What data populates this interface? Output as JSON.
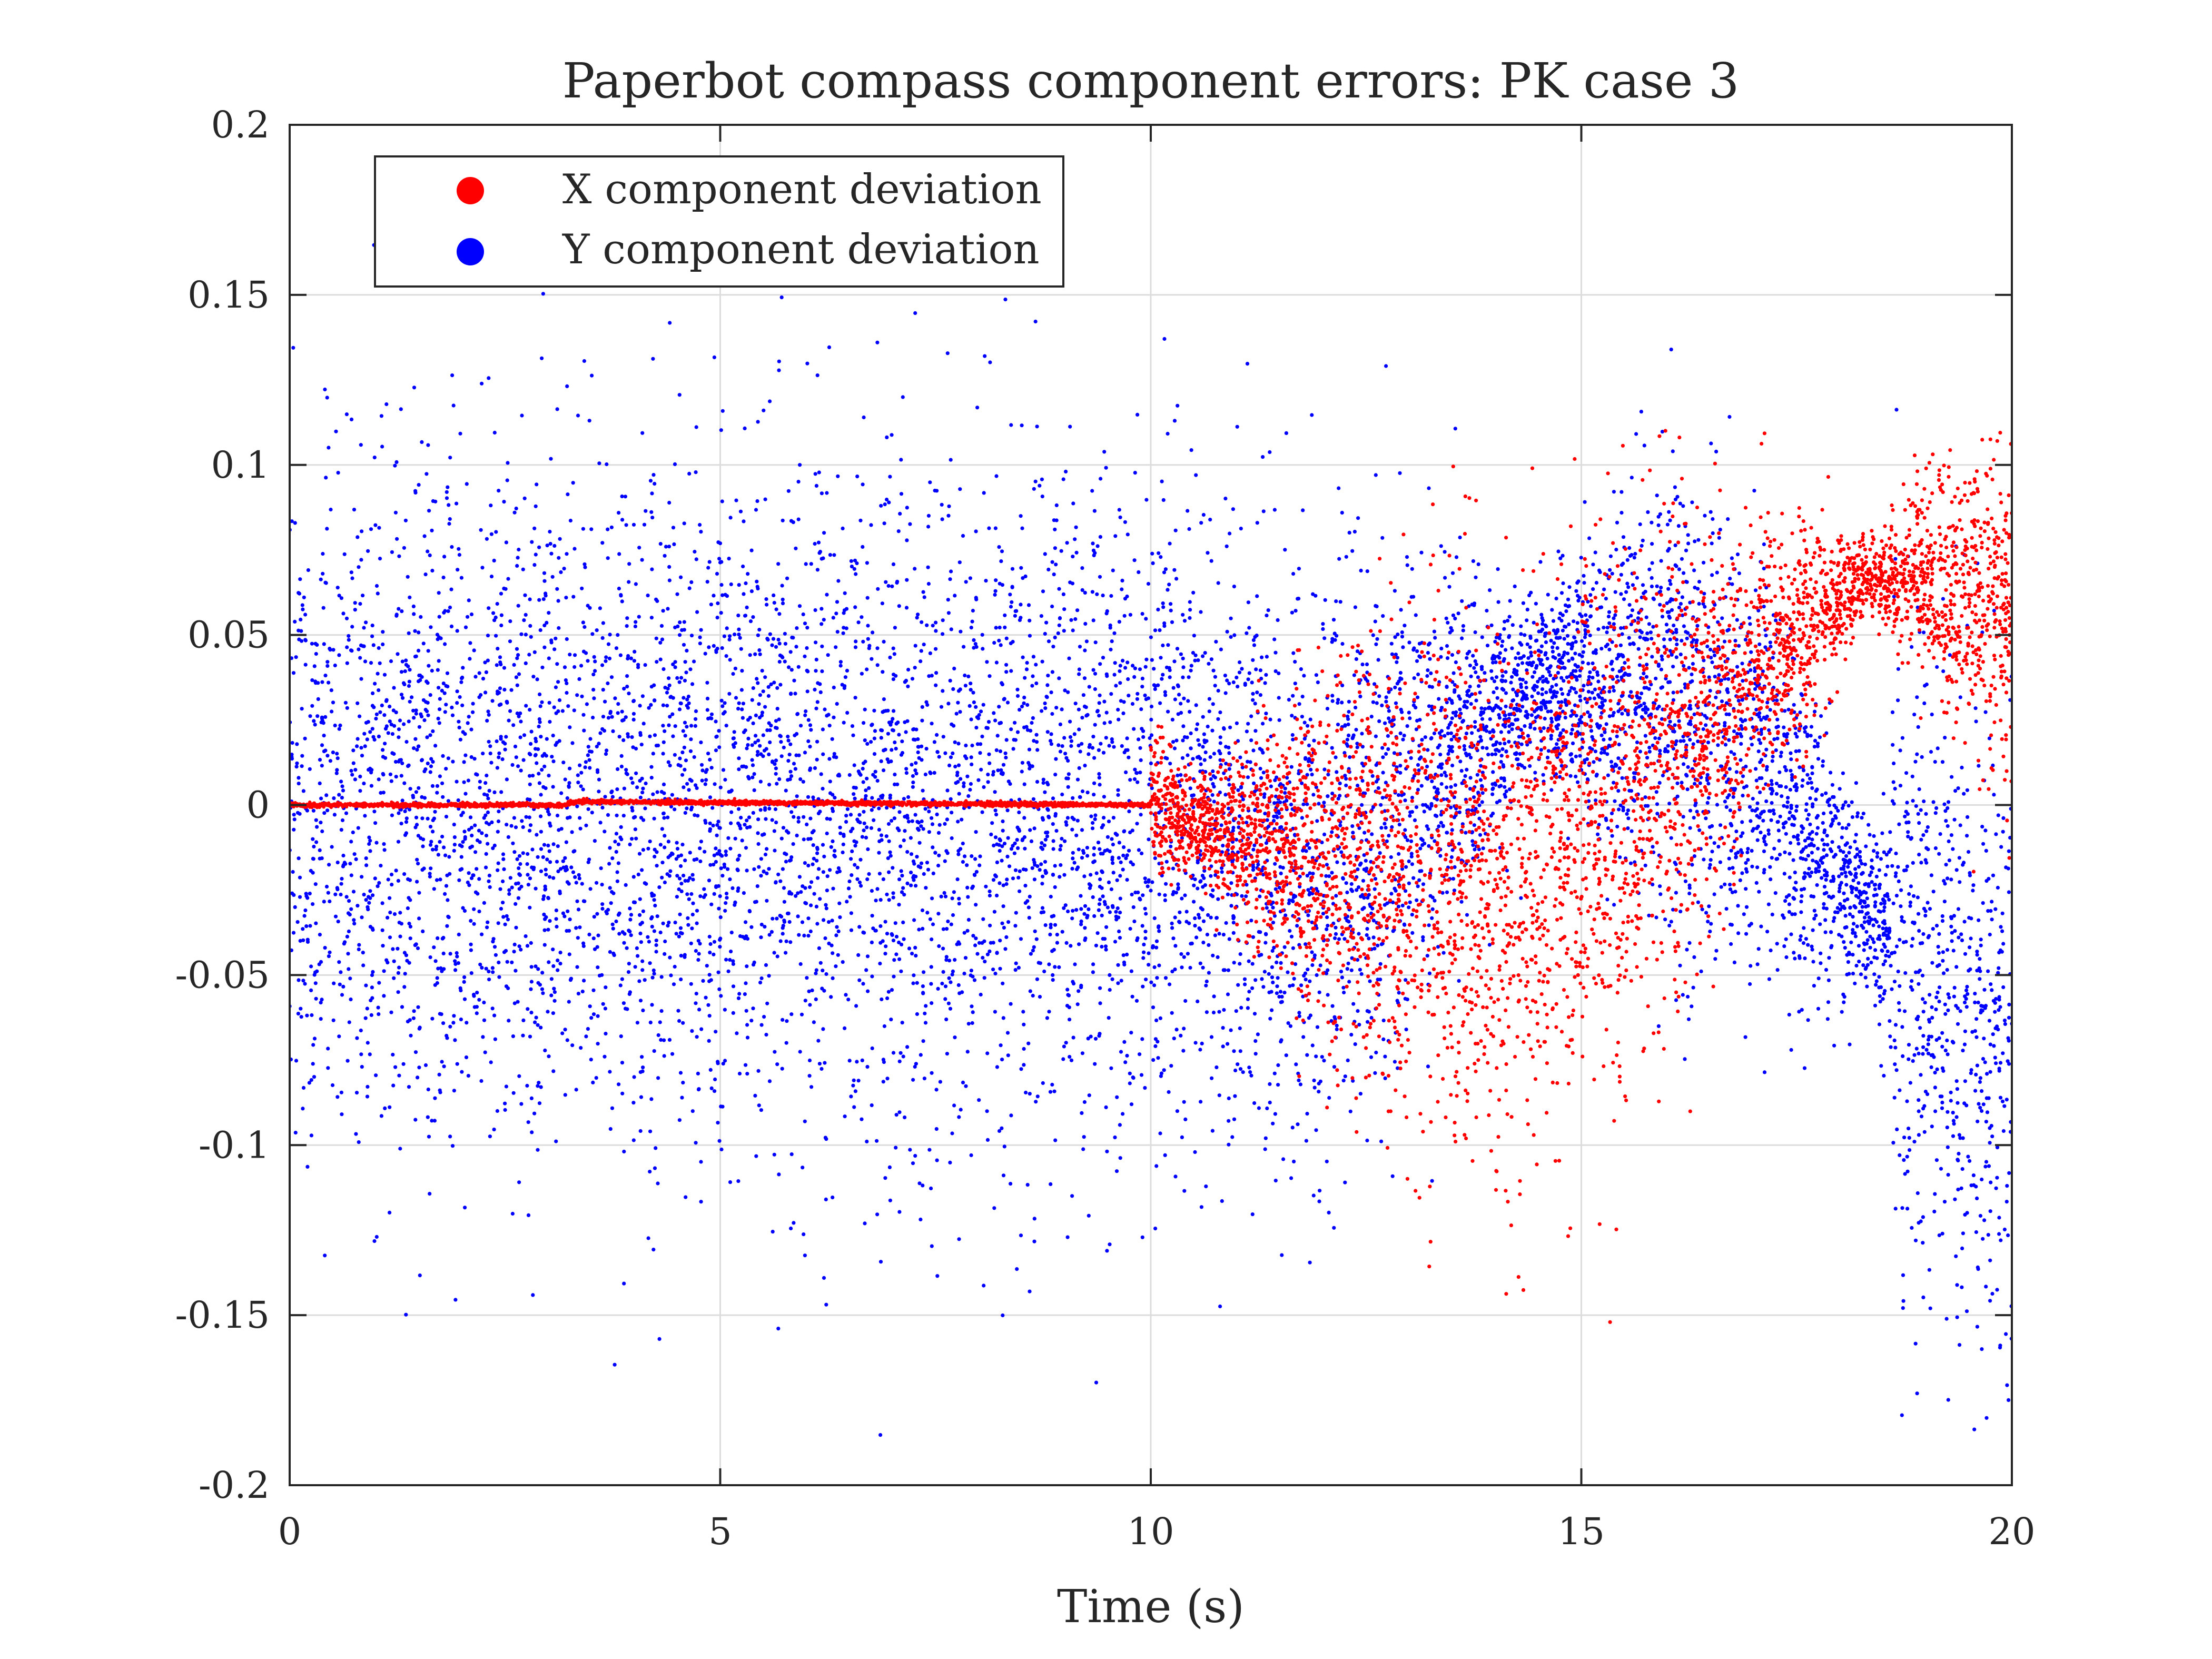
{
  "chart_data": {
    "type": "scatter",
    "title": "Paperbot compass component errors: PK case 3",
    "xlabel": "Time (s)",
    "ylabel": "",
    "xlim": [
      0,
      20
    ],
    "ylim": [
      -0.2,
      0.2
    ],
    "xticks": [
      0,
      5,
      10,
      15,
      20
    ],
    "yticks": [
      -0.2,
      -0.15,
      -0.1,
      -0.05,
      0,
      0.05,
      0.1,
      0.15,
      0.2
    ],
    "xtick_labels": [
      "0",
      "5",
      "10",
      "15",
      "20"
    ],
    "ytick_labels": [
      "-0.2",
      "-0.15",
      "-0.1",
      "-0.05",
      "0",
      "0.05",
      "0.1",
      "0.15",
      "0.2"
    ],
    "grid": true,
    "legend_position": "top-left",
    "series": [
      {
        "name": "X component deviation",
        "color": "#ff0000",
        "description_points": [
          {
            "x": 0,
            "y": 0
          },
          {
            "x": 3.2,
            "y": 0
          },
          {
            "x": 3.3,
            "y": 0.001
          },
          {
            "x": 10,
            "y": 0
          },
          {
            "x": 10.5,
            "y": -0.005
          },
          {
            "x": 11,
            "y": -0.01
          },
          {
            "x": 12,
            "y": -0.015
          },
          {
            "x": 13,
            "y": -0.02
          },
          {
            "x": 14,
            "y": -0.03
          },
          {
            "x": 15,
            "y": -0.01
          },
          {
            "x": 16,
            "y": 0.01
          },
          {
            "x": 17,
            "y": 0.04
          },
          {
            "x": 18,
            "y": 0.06
          },
          {
            "x": 18.3,
            "y": 0.068
          },
          {
            "x": 19,
            "y": 0.065
          },
          {
            "x": 20,
            "y": 0.055
          }
        ]
      },
      {
        "name": "Y component deviation",
        "color": "#0000ff",
        "description_points": [
          {
            "x": 0,
            "y": 0
          },
          {
            "x": 5,
            "y": 0
          },
          {
            "x": 10,
            "y": 0
          },
          {
            "x": 11,
            "y": -0.01
          },
          {
            "x": 12,
            "y": -0.02
          },
          {
            "x": 13,
            "y": 0.005
          },
          {
            "x": 14,
            "y": 0.025
          },
          {
            "x": 14.5,
            "y": 0.037
          },
          {
            "x": 15,
            "y": 0.035
          },
          {
            "x": 16,
            "y": 0.03
          },
          {
            "x": 17,
            "y": 0.01
          },
          {
            "x": 18,
            "y": -0.02
          },
          {
            "x": 19,
            "y": -0.05
          },
          {
            "x": 20,
            "y": -0.07
          }
        ]
      }
    ]
  }
}
